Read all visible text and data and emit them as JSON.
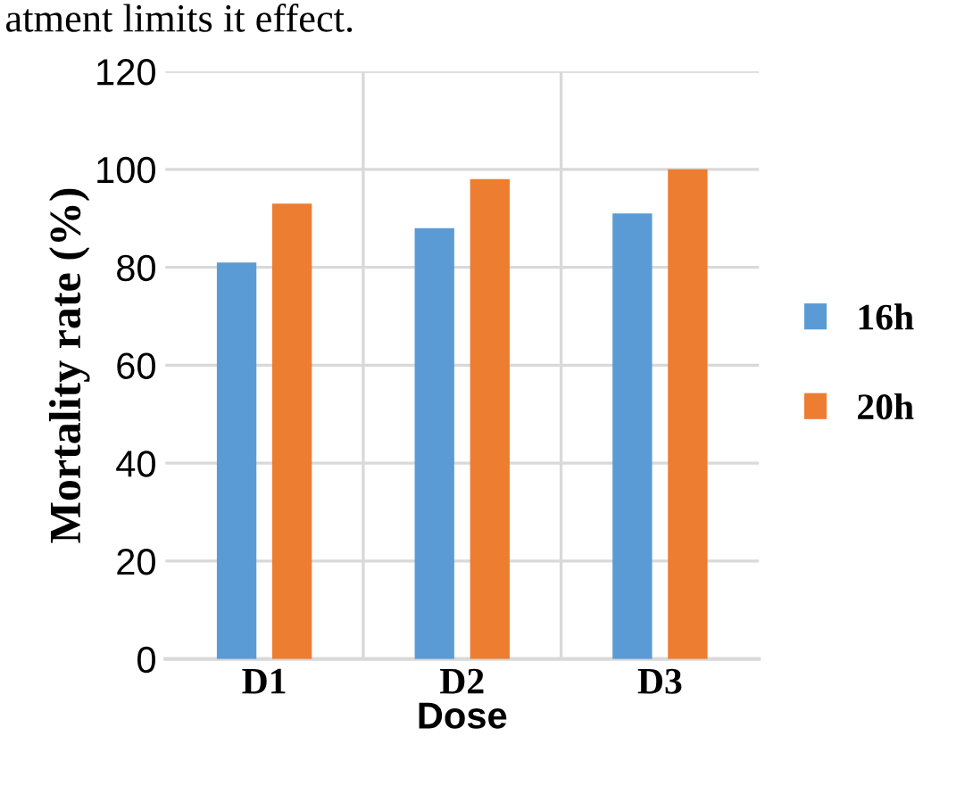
{
  "chart_data": {
    "type": "bar",
    "xlabel": "Dose",
    "ylabel": "Mortality rate (%)",
    "categories": [
      "D1",
      "D2",
      "D3"
    ],
    "series": [
      {
        "name": "16h",
        "color": "#5b9bd5",
        "values": [
          81,
          88,
          91
        ]
      },
      {
        "name": "20h",
        "color": "#ed7d31",
        "values": [
          93,
          98,
          100
        ]
      }
    ],
    "ylim": [
      0,
      120
    ],
    "yticks": [
      0,
      20,
      40,
      60,
      80,
      100,
      120
    ],
    "grid": true,
    "legend": "right",
    "annotations": [
      "atment limits it effect."
    ]
  }
}
